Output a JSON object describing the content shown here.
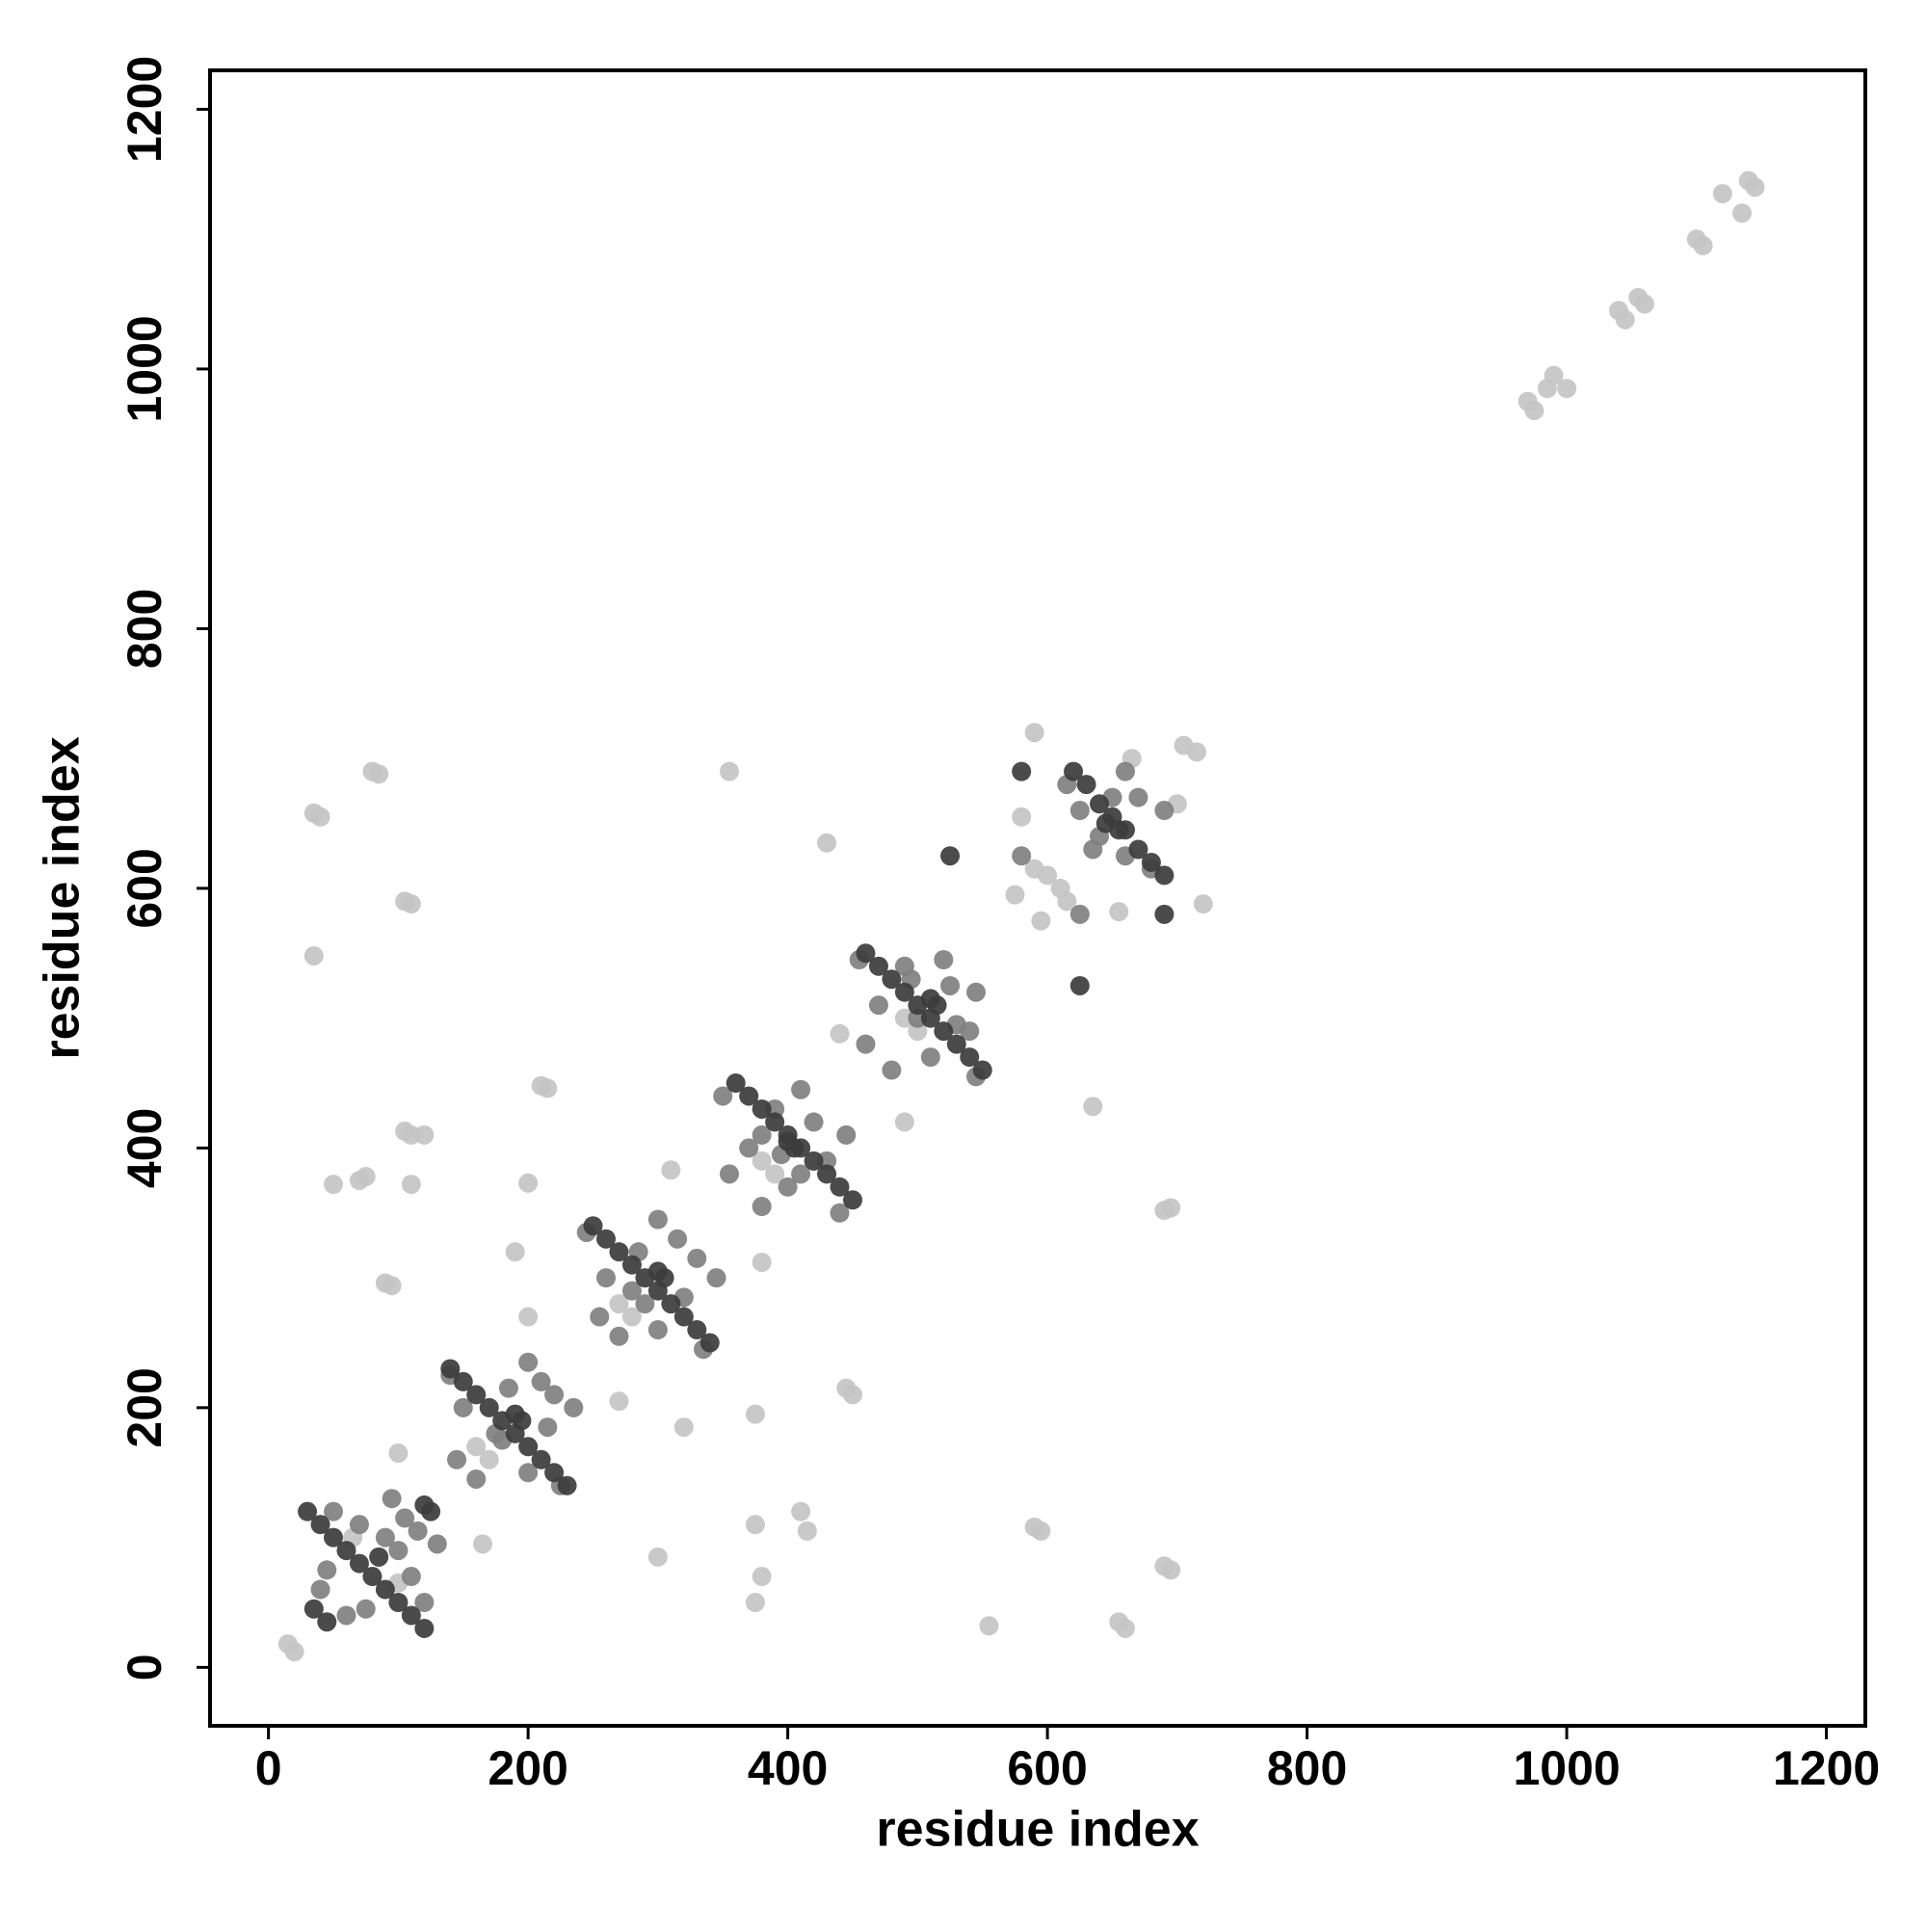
{
  "chart_data": {
    "type": "scatter",
    "xlabel": "residue index",
    "ylabel": "residue index",
    "xlim": [
      -45,
      1230
    ],
    "ylim": [
      -45,
      1230
    ],
    "xticks": [
      0,
      200,
      400,
      600,
      800,
      1000,
      1200
    ],
    "yticks": [
      0,
      200,
      400,
      600,
      800,
      1000,
      1200
    ],
    "grid": false,
    "series": [
      {
        "color": "#c4c4c4",
        "x": [
          15,
          20,
          35,
          40,
          80,
          85,
          35,
          105,
          110,
          50,
          70,
          75,
          110,
          105,
          110,
          120,
          90,
          95,
          100,
          165,
          200,
          210,
          215,
          190,
          200,
          270,
          355,
          430,
          300,
          320,
          375,
          375,
          375,
          380,
          410,
          415,
          445,
          450,
          555,
          590,
          595,
          690,
          695,
          660,
          655,
          690,
          695,
          635,
          380,
          310,
          440,
          490,
          580,
          705,
          590,
          715,
          720,
          655,
          970,
          975,
          985,
          990,
          1000,
          1040,
          1045,
          1055,
          1060,
          1100,
          1105,
          1120,
          1135,
          1140,
          1145,
          65,
          100,
          170,
          160,
          280,
          270,
          390,
          380,
          490,
          500,
          600,
          610,
          595,
          575,
          615,
          590,
          700,
          665
        ],
        "y": [
          18,
          12,
          658,
          655,
          690,
          688,
          548,
          590,
          588,
          372,
          375,
          378,
          372,
          413,
          410,
          410,
          296,
          294,
          165,
          95,
          373,
          448,
          446,
          320,
          270,
          205,
          690,
          635,
          85,
          185,
          195,
          110,
          50,
          70,
          120,
          105,
          215,
          210,
          32,
          108,
          105,
          78,
          75,
          30,
          35,
          352,
          354,
          432,
          312,
          383,
          488,
          420,
          655,
          710,
          720,
          705,
          588,
          582,
          975,
          968,
          985,
          995,
          985,
          1045,
          1038,
          1055,
          1050,
          1100,
          1095,
          1135,
          1120,
          1145,
          1140,
          100,
          65,
          160,
          170,
          270,
          280,
          380,
          390,
          500,
          490,
          610,
          600,
          575,
          595,
          590,
          615,
          665,
          700
        ]
      },
      {
        "color": "#808080",
        "x": [
          40,
          60,
          70,
          110,
          90,
          100,
          50,
          120,
          130,
          95,
          75,
          45,
          105,
          115,
          145,
          160,
          185,
          215,
          235,
          200,
          150,
          200,
          225,
          140,
          175,
          180,
          210,
          220,
          255,
          270,
          285,
          320,
          345,
          300,
          260,
          300,
          335,
          245,
          290,
          280,
          315,
          330,
          355,
          380,
          390,
          430,
          445,
          410,
          370,
          400,
          440,
          350,
          395,
          420,
          380,
          410,
          460,
          480,
          495,
          530,
          545,
          520,
          470,
          510,
          545,
          455,
          500,
          525,
          490,
          540,
          625,
          660,
          640,
          670,
          690,
          660,
          615,
          680,
          635,
          650,
          580,
          625
        ],
        "y": [
          60,
          40,
          110,
          70,
          100,
          90,
          120,
          50,
          95,
          130,
          45,
          75,
          115,
          105,
          160,
          145,
          215,
          185,
          200,
          235,
          200,
          150,
          140,
          225,
          180,
          175,
          220,
          210,
          270,
          255,
          320,
          285,
          300,
          345,
          300,
          260,
          245,
          335,
          280,
          290,
          330,
          315,
          380,
          355,
          430,
          390,
          410,
          445,
          400,
          370,
          350,
          440,
          395,
          420,
          410,
          380,
          480,
          460,
          530,
          495,
          520,
          545,
          510,
          470,
          455,
          545,
          500,
          525,
          540,
          490,
          660,
          625,
          640,
          670,
          660,
          690,
          680,
          615,
          630,
          670,
          625,
          580
        ]
      },
      {
        "color": "#3c3c3c",
        "x": [
          30,
          40,
          50,
          60,
          70,
          80,
          90,
          100,
          110,
          120,
          35,
          45,
          85,
          120,
          125,
          140,
          150,
          160,
          170,
          180,
          190,
          200,
          210,
          220,
          230,
          190,
          195,
          250,
          260,
          270,
          280,
          290,
          300,
          310,
          320,
          330,
          340,
          300,
          305,
          360,
          370,
          380,
          390,
          400,
          410,
          420,
          430,
          440,
          450,
          400,
          405,
          460,
          470,
          480,
          490,
          500,
          510,
          520,
          530,
          540,
          550,
          510,
          515,
          620,
          630,
          640,
          650,
          660,
          670,
          680,
          690,
          645,
          655,
          580,
          690,
          525,
          625
        ],
        "y": [
          120,
          110,
          100,
          90,
          80,
          70,
          60,
          50,
          40,
          30,
          45,
          35,
          85,
          125,
          120,
          230,
          220,
          210,
          200,
          190,
          180,
          170,
          160,
          150,
          140,
          195,
          190,
          340,
          330,
          320,
          310,
          300,
          290,
          280,
          270,
          260,
          250,
          305,
          300,
          450,
          440,
          430,
          420,
          410,
          400,
          390,
          380,
          370,
          360,
          405,
          400,
          550,
          540,
          530,
          520,
          510,
          500,
          490,
          480,
          470,
          460,
          515,
          510,
          690,
          680,
          665,
          655,
          645,
          630,
          620,
          610,
          650,
          645,
          690,
          580,
          625,
          525
        ]
      }
    ]
  }
}
